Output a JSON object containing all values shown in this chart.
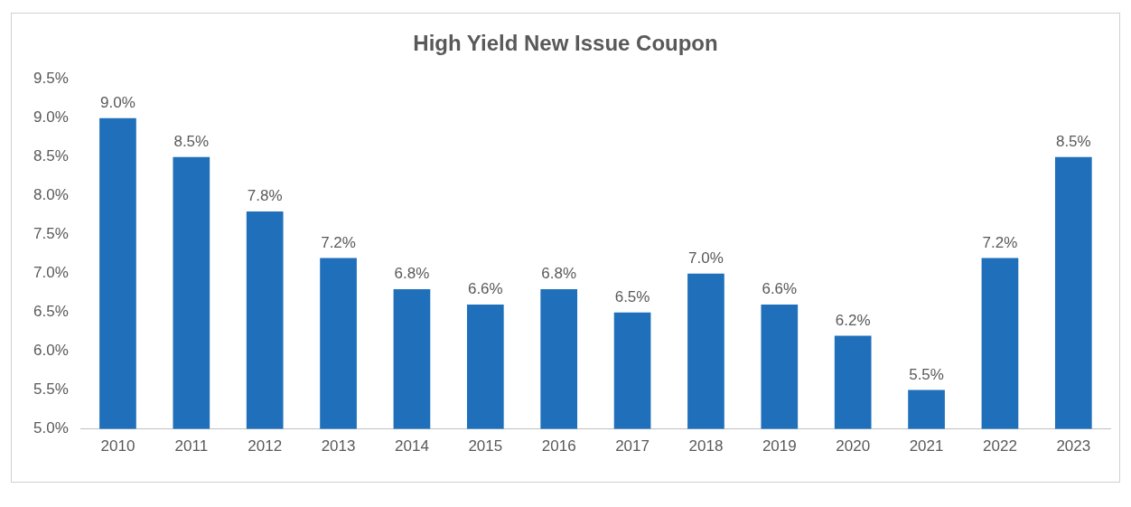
{
  "chart_data": {
    "type": "bar",
    "title": "High Yield New Issue Coupon",
    "categories": [
      "2010",
      "2011",
      "2012",
      "2013",
      "2014",
      "2015",
      "2016",
      "2017",
      "2018",
      "2019",
      "2020",
      "2021",
      "2022",
      "2023"
    ],
    "values": [
      9.0,
      8.5,
      7.8,
      7.2,
      6.8,
      6.6,
      6.8,
      6.5,
      7.0,
      6.6,
      6.2,
      5.5,
      7.2,
      8.5
    ],
    "value_labels": [
      "9.0%",
      "8.5%",
      "7.8%",
      "7.2%",
      "6.8%",
      "6.6%",
      "6.8%",
      "6.5%",
      "7.0%",
      "6.6%",
      "6.2%",
      "5.5%",
      "7.2%",
      "8.5%"
    ],
    "color": "#1f6fba",
    "ylim": [
      5.0,
      9.5
    ],
    "yticks": [
      {
        "value": 5.0,
        "label": "5.0%"
      },
      {
        "value": 5.5,
        "label": "5.5%"
      },
      {
        "value": 6.0,
        "label": "6.0%"
      },
      {
        "value": 6.5,
        "label": "6.5%"
      },
      {
        "value": 7.0,
        "label": "7.0%"
      },
      {
        "value": 7.5,
        "label": "7.5%"
      },
      {
        "value": 8.0,
        "label": "8.0%"
      },
      {
        "value": 8.5,
        "label": "8.5%"
      },
      {
        "value": 9.0,
        "label": "9.0%"
      },
      {
        "value": 9.5,
        "label": "9.5%"
      }
    ],
    "grid": false,
    "legend": false
  }
}
